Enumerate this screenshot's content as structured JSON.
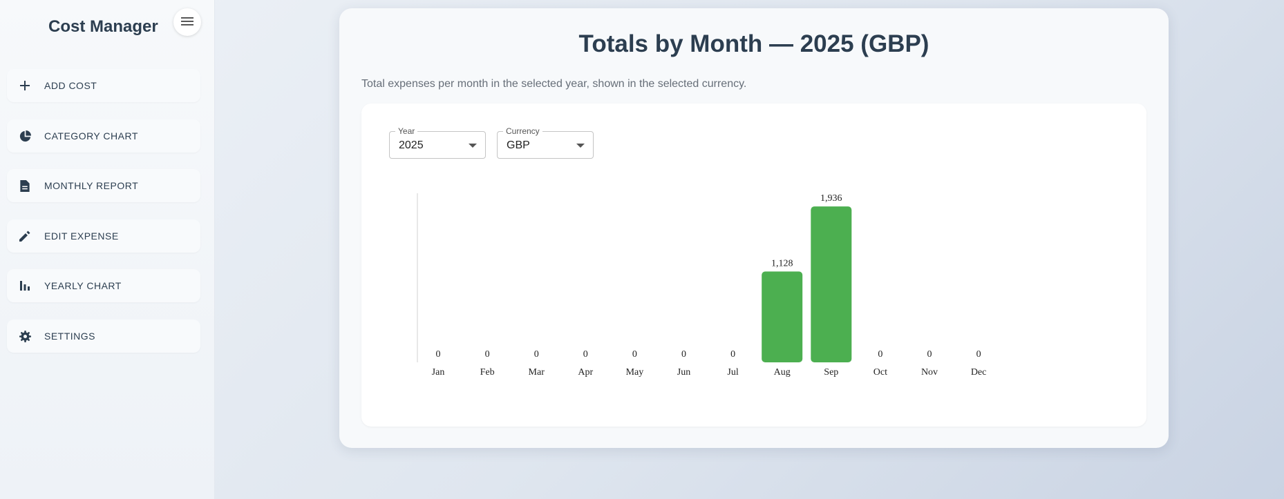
{
  "app": {
    "title": "Cost Manager"
  },
  "sidebar": {
    "items": [
      {
        "label": "ADD COST",
        "icon": "plus-icon"
      },
      {
        "label": "CATEGORY CHART",
        "icon": "pie-chart-icon"
      },
      {
        "label": "MONTHLY REPORT",
        "icon": "document-icon"
      },
      {
        "label": "EDIT EXPENSE",
        "icon": "pencil-icon"
      },
      {
        "label": "YEARLY CHART",
        "icon": "bar-chart-icon"
      },
      {
        "label": "SETTINGS",
        "icon": "gear-icon"
      }
    ]
  },
  "main": {
    "title": "Totals by Month — 2025 (GBP)",
    "subtitle": "Total expenses per month in the selected year, shown in the selected currency.",
    "filters": {
      "year": {
        "label": "Year",
        "value": "2025"
      },
      "currency": {
        "label": "Currency",
        "value": "GBP"
      }
    }
  },
  "colors": {
    "bar": "#4caf50",
    "text": "#2c3e50"
  },
  "chart_data": {
    "type": "bar",
    "categories": [
      "Jan",
      "Feb",
      "Mar",
      "Apr",
      "May",
      "Jun",
      "Jul",
      "Aug",
      "Sep",
      "Oct",
      "Nov",
      "Dec"
    ],
    "values": [
      0,
      0,
      0,
      0,
      0,
      0,
      0,
      1128,
      1936,
      0,
      0,
      0
    ],
    "data_labels": [
      "0",
      "0",
      "0",
      "0",
      "0",
      "0",
      "0",
      "1,128",
      "1,936",
      "0",
      "0",
      "0"
    ],
    "title": "",
    "xlabel": "",
    "ylabel": "",
    "ylim": [
      0,
      2100
    ],
    "grid": false,
    "legend": "none"
  }
}
